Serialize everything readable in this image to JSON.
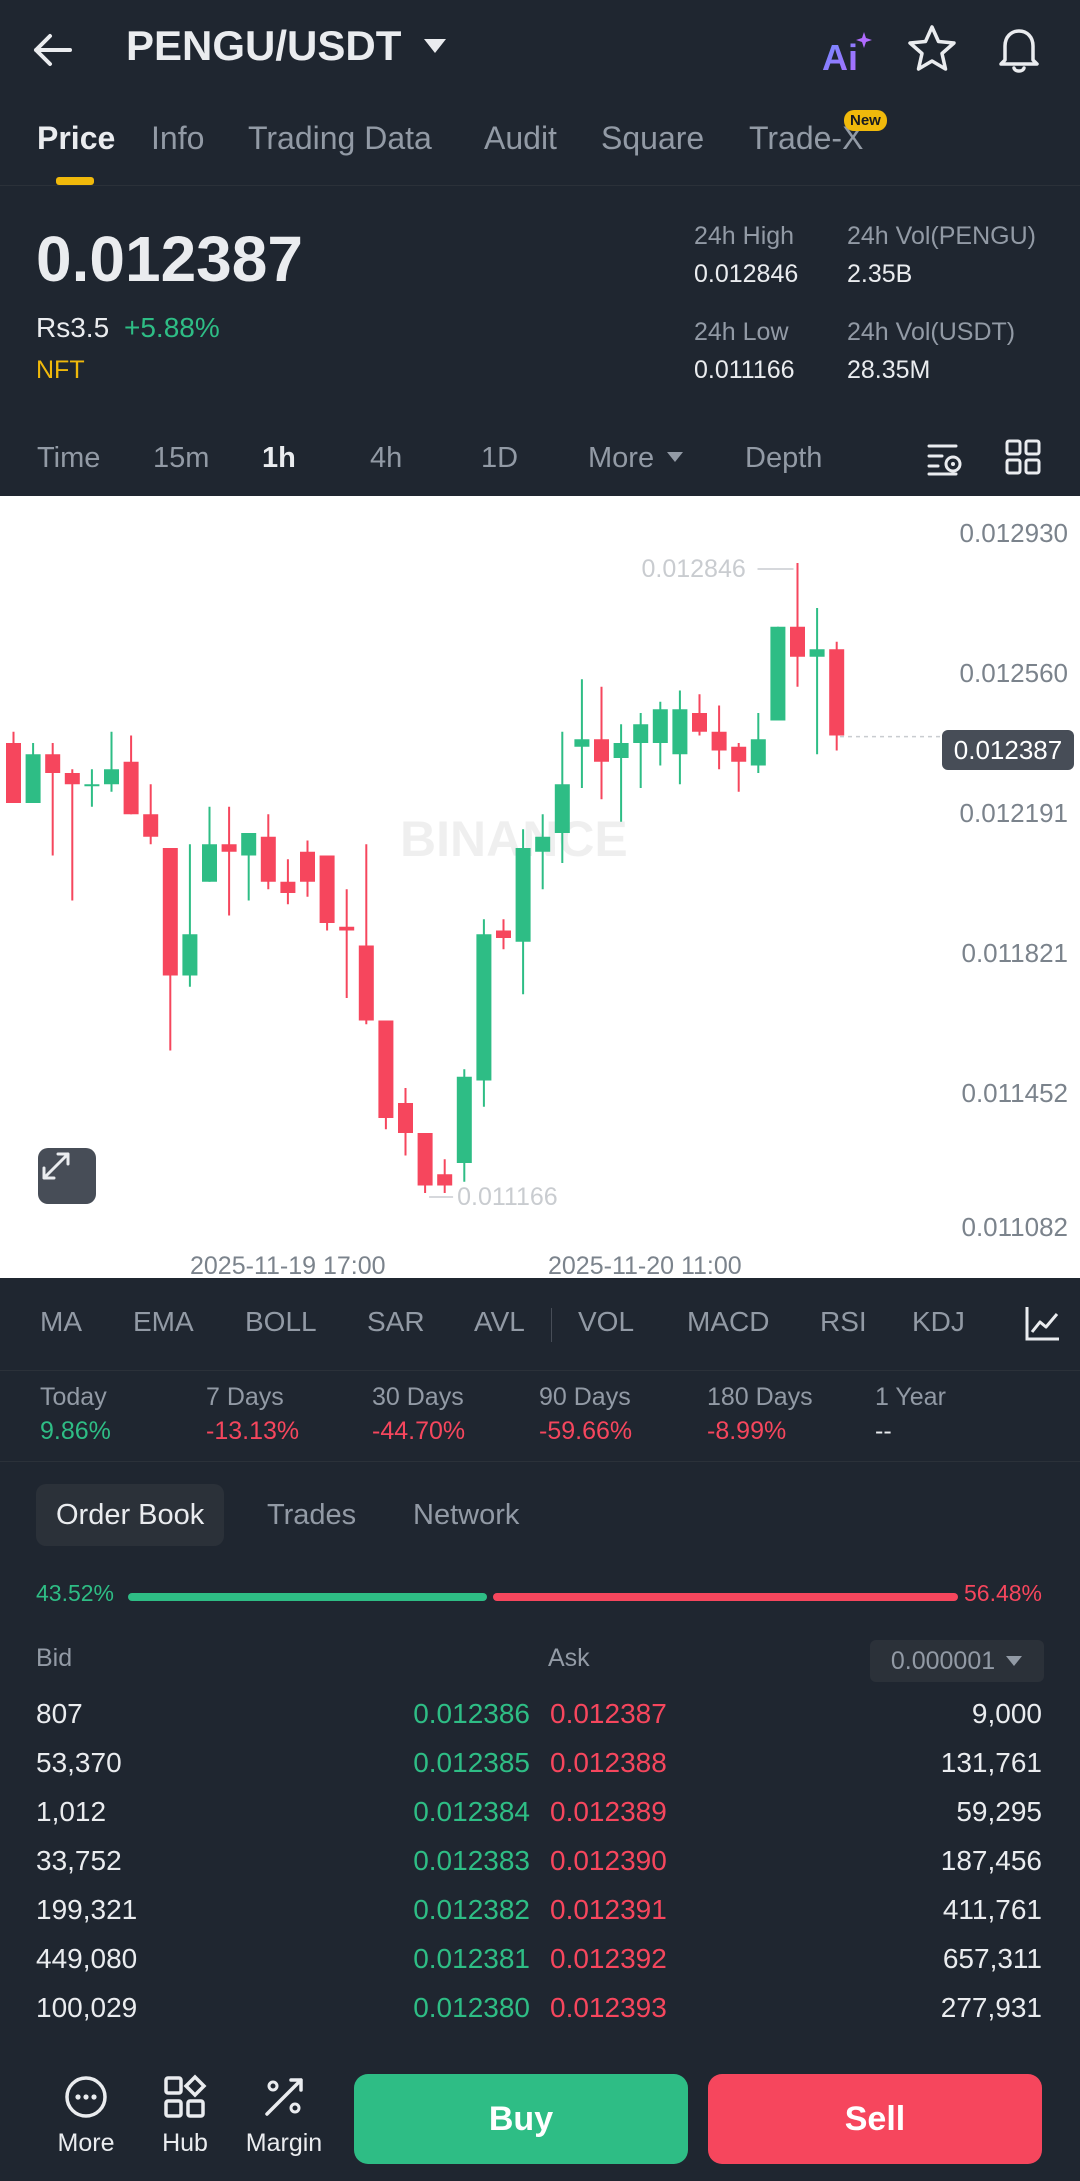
{
  "header": {
    "pair": "PENGU/USDT",
    "ai_label": "Ai"
  },
  "tabs": [
    {
      "label": "Price",
      "active": true
    },
    {
      "label": "Info"
    },
    {
      "label": "Trading Data"
    },
    {
      "label": "Audit"
    },
    {
      "label": "Square"
    },
    {
      "label": "Trade-X",
      "badge": "New"
    }
  ],
  "ticker": {
    "last_price": "0.012387",
    "fiat_price": "Rs3.5",
    "change_pct": "+5.88%",
    "tag": "NFT",
    "high_label": "24h High",
    "high_value": "0.012846",
    "low_label": "24h Low",
    "low_value": "0.011166",
    "vol_base_label": "24h Vol(PENGU)",
    "vol_base_value": "2.35B",
    "vol_quote_label": "24h Vol(USDT)",
    "vol_quote_value": "28.35M"
  },
  "intervals": [
    {
      "label": "Time"
    },
    {
      "label": "15m"
    },
    {
      "label": "1h",
      "active": true
    },
    {
      "label": "4h"
    },
    {
      "label": "1D"
    },
    {
      "label": "More"
    },
    {
      "label": "Depth"
    }
  ],
  "chart": {
    "y_ticks": [
      "0.012930",
      "0.012560",
      "0.012191",
      "0.011821",
      "0.011452",
      "0.011082"
    ],
    "current_price": "0.012387",
    "high_marker": "0.012846",
    "low_marker": "0.011166",
    "x_ticks": [
      "2025-11-19 17:00",
      "2025-11-20 11:00"
    ],
    "up_color": "#2ebd85",
    "down_color": "#f6465d"
  },
  "chart_data": {
    "type": "candlestick",
    "interval": "1h",
    "ylim": [
      0.011082,
      0.01293
    ],
    "candles": [
      {
        "o": 0.01237,
        "h": 0.0124,
        "l": 0.01221,
        "c": 0.01221
      },
      {
        "o": 0.01221,
        "h": 0.01237,
        "l": 0.01221,
        "c": 0.01234
      },
      {
        "o": 0.01234,
        "h": 0.01237,
        "l": 0.01207,
        "c": 0.01229
      },
      {
        "o": 0.01229,
        "h": 0.0123,
        "l": 0.01195,
        "c": 0.01226
      },
      {
        "o": 0.01226,
        "h": 0.0123,
        "l": 0.0122,
        "c": 0.01226
      },
      {
        "o": 0.01226,
        "h": 0.0124,
        "l": 0.01224,
        "c": 0.0123
      },
      {
        "o": 0.01232,
        "h": 0.01239,
        "l": 0.01218,
        "c": 0.01218
      },
      {
        "o": 0.01218,
        "h": 0.01226,
        "l": 0.0121,
        "c": 0.01212
      },
      {
        "o": 0.01209,
        "h": 0.01209,
        "l": 0.01155,
        "c": 0.01175
      },
      {
        "o": 0.01175,
        "h": 0.0121,
        "l": 0.01172,
        "c": 0.01186
      },
      {
        "o": 0.012,
        "h": 0.0122,
        "l": 0.012,
        "c": 0.0121
      },
      {
        "o": 0.0121,
        "h": 0.0122,
        "l": 0.01191,
        "c": 0.01208
      },
      {
        "o": 0.01207,
        "h": 0.01213,
        "l": 0.01195,
        "c": 0.01213
      },
      {
        "o": 0.01212,
        "h": 0.01218,
        "l": 0.01198,
        "c": 0.012
      },
      {
        "o": 0.012,
        "h": 0.01206,
        "l": 0.01194,
        "c": 0.01197
      },
      {
        "o": 0.01208,
        "h": 0.01211,
        "l": 0.01196,
        "c": 0.012
      },
      {
        "o": 0.01207,
        "h": 0.01207,
        "l": 0.01187,
        "c": 0.01189
      },
      {
        "o": 0.01188,
        "h": 0.01198,
        "l": 0.01169,
        "c": 0.01187
      },
      {
        "o": 0.01183,
        "h": 0.0121,
        "l": 0.01162,
        "c": 0.01163
      },
      {
        "o": 0.01163,
        "h": 0.01163,
        "l": 0.01134,
        "c": 0.01137
      },
      {
        "o": 0.01141,
        "h": 0.01145,
        "l": 0.01127,
        "c": 0.01133
      },
      {
        "o": 0.01133,
        "h": 0.01133,
        "l": 0.01117,
        "c": 0.01119
      },
      {
        "o": 0.01122,
        "h": 0.01126,
        "l": 0.01117,
        "c": 0.01119
      },
      {
        "o": 0.01125,
        "h": 0.0115,
        "l": 0.0112,
        "c": 0.01148
      },
      {
        "o": 0.01147,
        "h": 0.0119,
        "l": 0.0114,
        "c": 0.01186
      },
      {
        "o": 0.01187,
        "h": 0.0119,
        "l": 0.01182,
        "c": 0.01185
      },
      {
        "o": 0.01184,
        "h": 0.01214,
        "l": 0.0117,
        "c": 0.01209
      },
      {
        "o": 0.01208,
        "h": 0.01218,
        "l": 0.01198,
        "c": 0.01212
      },
      {
        "o": 0.01213,
        "h": 0.0124,
        "l": 0.01205,
        "c": 0.01226
      },
      {
        "o": 0.01236,
        "h": 0.01254,
        "l": 0.01225,
        "c": 0.01238
      },
      {
        "o": 0.01238,
        "h": 0.01252,
        "l": 0.01222,
        "c": 0.01232
      },
      {
        "o": 0.01233,
        "h": 0.01242,
        "l": 0.01216,
        "c": 0.01237
      },
      {
        "o": 0.01237,
        "h": 0.01245,
        "l": 0.01225,
        "c": 0.01242
      },
      {
        "o": 0.01237,
        "h": 0.01248,
        "l": 0.01231,
        "c": 0.01246
      },
      {
        "o": 0.01234,
        "h": 0.01251,
        "l": 0.01226,
        "c": 0.01246
      },
      {
        "o": 0.01245,
        "h": 0.0125,
        "l": 0.01239,
        "c": 0.0124
      },
      {
        "o": 0.0124,
        "h": 0.01247,
        "l": 0.0123,
        "c": 0.01235
      },
      {
        "o": 0.01236,
        "h": 0.01237,
        "l": 0.01224,
        "c": 0.01232
      },
      {
        "o": 0.01231,
        "h": 0.01245,
        "l": 0.01229,
        "c": 0.01238
      },
      {
        "o": 0.01243,
        "h": 0.01268,
        "l": 0.01243,
        "c": 0.01268
      },
      {
        "o": 0.01268,
        "h": 0.01285,
        "l": 0.01252,
        "c": 0.0126
      },
      {
        "o": 0.0126,
        "h": 0.01273,
        "l": 0.01234,
        "c": 0.01262
      },
      {
        "o": 0.01262,
        "h": 0.01264,
        "l": 0.01235,
        "c": 0.01239
      }
    ]
  },
  "indicators": [
    "MA",
    "EMA",
    "BOLL",
    "SAR",
    "AVL",
    "VOL",
    "MACD",
    "RSI",
    "KDJ"
  ],
  "performance": [
    {
      "label": "Today",
      "value": "9.86%",
      "dir": "up"
    },
    {
      "label": "7 Days",
      "value": "-13.13%",
      "dir": "down"
    },
    {
      "label": "30 Days",
      "value": "-44.70%",
      "dir": "down"
    },
    {
      "label": "90 Days",
      "value": "-59.66%",
      "dir": "down"
    },
    {
      "label": "180 Days",
      "value": "-8.99%",
      "dir": "down"
    },
    {
      "label": "1 Year",
      "value": "--",
      "dir": "none"
    }
  ],
  "orderbook": {
    "tabs": [
      {
        "label": "Order Book",
        "active": true
      },
      {
        "label": "Trades"
      },
      {
        "label": "Network"
      }
    ],
    "bid_ratio": "43.52%",
    "ask_ratio": "56.48%",
    "bid_ratio_value": 0.4352,
    "bid_label": "Bid",
    "ask_label": "Ask",
    "precision": "0.000001",
    "rows": [
      {
        "bid_qty": "807",
        "bid": "0.012386",
        "ask": "0.012387",
        "ask_qty": "9,000"
      },
      {
        "bid_qty": "53,370",
        "bid": "0.012385",
        "ask": "0.012388",
        "ask_qty": "131,761"
      },
      {
        "bid_qty": "1,012",
        "bid": "0.012384",
        "ask": "0.012389",
        "ask_qty": "59,295"
      },
      {
        "bid_qty": "33,752",
        "bid": "0.012383",
        "ask": "0.012390",
        "ask_qty": "187,456"
      },
      {
        "bid_qty": "199,321",
        "bid": "0.012382",
        "ask": "0.012391",
        "ask_qty": "411,761"
      },
      {
        "bid_qty": "449,080",
        "bid": "0.012381",
        "ask": "0.012392",
        "ask_qty": "657,311"
      },
      {
        "bid_qty": "100,029",
        "bid": "0.012380",
        "ask": "0.012393",
        "ask_qty": "277,931"
      }
    ]
  },
  "bottom_nav": [
    {
      "label": "More",
      "icon": "more-icon"
    },
    {
      "label": "Hub",
      "icon": "hub-icon"
    },
    {
      "label": "Margin",
      "icon": "margin-icon"
    }
  ],
  "actions": {
    "buy": "Buy",
    "sell": "Sell"
  }
}
